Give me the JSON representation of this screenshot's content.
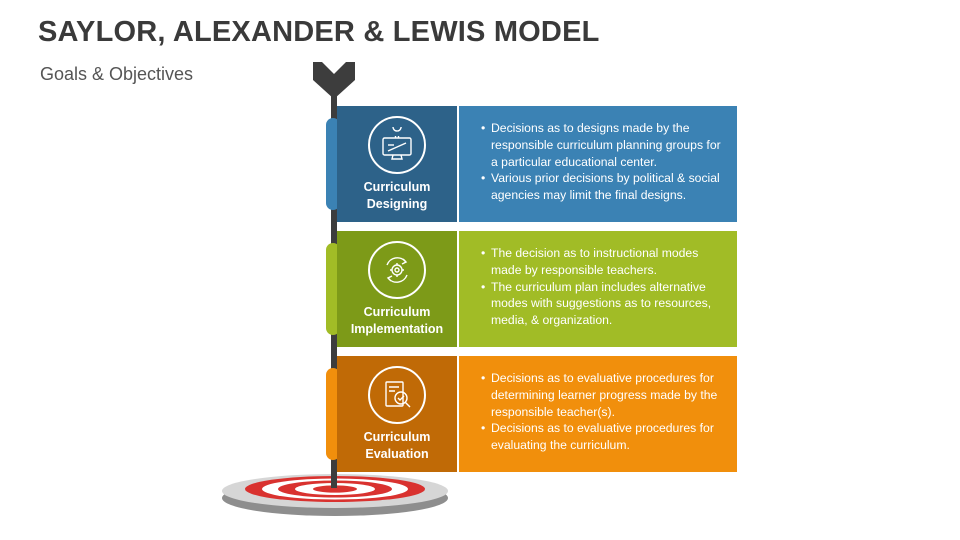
{
  "header": {
    "title": "SAYLOR, ALEXANDER & LEWIS MODEL",
    "subtitle": "Goals & Objectives"
  },
  "colors": {
    "designing": "#3b82b4",
    "implementation": "#a1bc26",
    "evaluation": "#f18f0c",
    "pole": "#3d3d3d",
    "target_ring": "#d9322f"
  },
  "stages": [
    {
      "title_line1": "Curriculum",
      "title_line2": "Designing",
      "icon": "computer-lightbulb-icon",
      "bullets": [
        "Decisions as to designs made by the responsible curriculum planning groups for a particular educational center.",
        "Various prior decisions by political & social agencies may limit the final designs."
      ]
    },
    {
      "title_line1": "Curriculum",
      "title_line2": "Implementation",
      "icon": "gear-cycle-icon",
      "bullets": [
        "The decision as to instructional modes made by responsible teachers.",
        "The curriculum plan includes alternative modes with suggestions as to resources, media, & organization."
      ]
    },
    {
      "title_line1": "Curriculum",
      "title_line2": "Evaluation",
      "icon": "checklist-magnifier-icon",
      "bullets": [
        "Decisions as to evaluative procedures for determining learner progress made by the responsible teacher(s).",
        "Decisions as to evaluative procedures for evaluating the curriculum."
      ]
    }
  ]
}
